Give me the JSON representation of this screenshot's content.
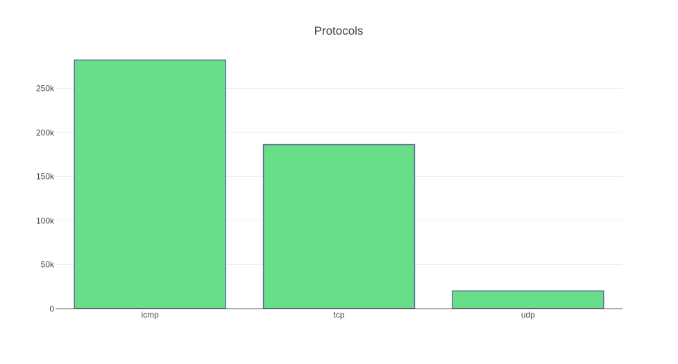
{
  "chart_data": {
    "type": "bar",
    "title": "Protocols",
    "xlabel": "",
    "ylabel": "",
    "categories": [
      "icmp",
      "tcp",
      "udp"
    ],
    "values": [
      282000,
      186000,
      20000
    ],
    "ylim": [
      0,
      295000
    ],
    "y_ticks": [
      0,
      50000,
      100000,
      150000,
      200000,
      250000
    ],
    "y_tick_labels": [
      "0",
      "50k",
      "100k",
      "150k",
      "200k",
      "250k"
    ],
    "grid": true,
    "legend": "none",
    "bar_color": "#67de87",
    "bar_outline_color": "#5e6b96",
    "grid_color": "#eeeeee",
    "axis_color": "#444444",
    "text_color": "#444444"
  }
}
